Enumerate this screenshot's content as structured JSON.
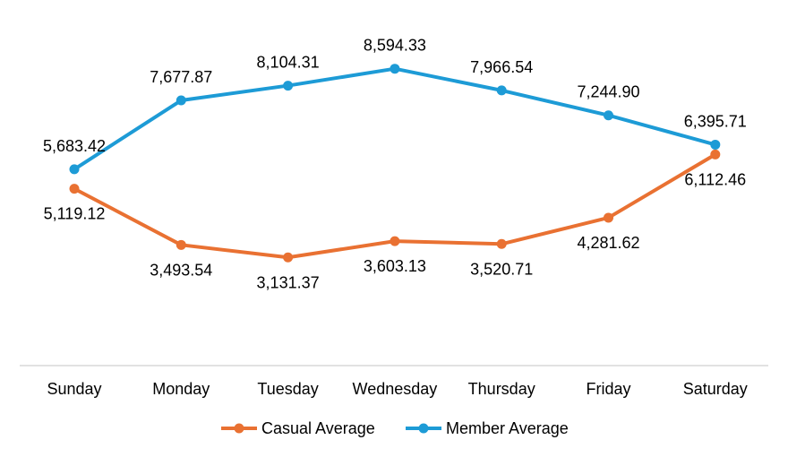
{
  "chart_data": {
    "type": "line",
    "categories": [
      "Sunday",
      "Monday",
      "Tuesday",
      "Wednesday",
      "Thursday",
      "Friday",
      "Saturday"
    ],
    "series": [
      {
        "name": "Casual Average",
        "color": "#E97132",
        "values": [
          5119.12,
          3493.54,
          3131.37,
          3603.13,
          3520.71,
          4281.62,
          6112.46
        ],
        "labels": [
          "5,119.12",
          "3,493.54",
          "3,131.37",
          "3,603.13",
          "3,520.71",
          "4,281.62",
          "6,112.46"
        ]
      },
      {
        "name": "Member Average",
        "color": "#1D9BD6",
        "values": [
          5683.42,
          7677.87,
          8104.31,
          8594.33,
          7966.54,
          7244.9,
          6395.71
        ],
        "labels": [
          "5,683.42",
          "7,677.87",
          "8,104.31",
          "8,594.33",
          "7,966.54",
          "7,244.90",
          "6,395.71"
        ]
      }
    ],
    "ylim": [
      0,
      9000
    ],
    "grid": false,
    "legend_position": "bottom",
    "title": "",
    "xlabel": "",
    "ylabel": ""
  }
}
